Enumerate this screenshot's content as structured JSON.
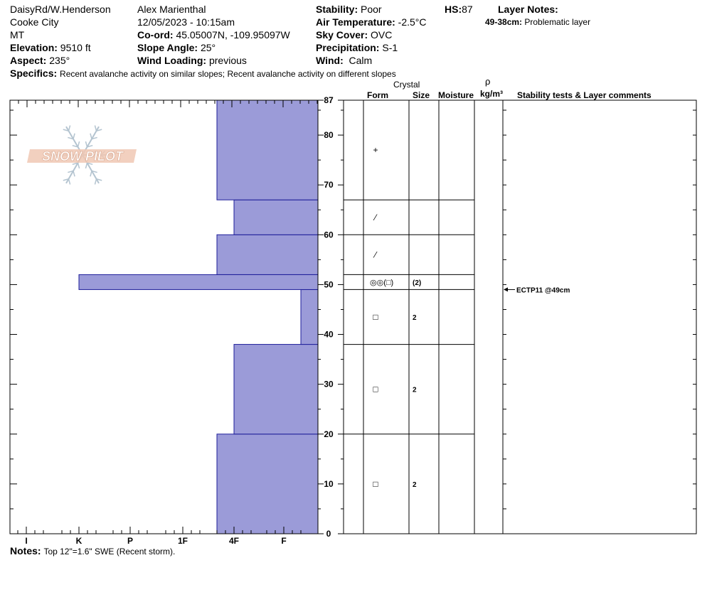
{
  "header": {
    "location": "DaisyRd/W.Henderson",
    "city": "Cooke City",
    "state": "MT",
    "elevation_label": "Elevation:",
    "elevation": "9510 ft",
    "aspect_label": "Aspect:",
    "aspect": "235°",
    "observer": "Alex Marienthal",
    "datetime": "12/05/2023 - 10:15am",
    "coord_label": "Co-ord:",
    "coord": "45.05007N, -109.95097W",
    "slope_label": "Slope Angle:",
    "slope": "25°",
    "wind_loading_label": "Wind Loading:",
    "wind_loading": "previous",
    "stability_label": "Stability:",
    "stability": "Poor",
    "air_temp_label": "Air Temperature:",
    "air_temp": "-2.5°C",
    "sky_label": "Sky Cover:",
    "sky": "OVC",
    "precip_label": "Precipitation:",
    "precip": "S-1",
    "wind_label": "Wind:",
    "wind": "Calm",
    "hs_label": "HS:",
    "hs": "87",
    "layer_notes_label": "Layer Notes:",
    "layer_note_range": "49-38cm:",
    "layer_note_text": "Problematic layer",
    "specifics_label": "Specifics:",
    "specifics": "Recent avalanche activity on similar slopes; Recent avalanche activity on different slopes"
  },
  "columns": {
    "crystal": "Crystal",
    "form": "Form",
    "size": "Size",
    "moisture": "Moisture",
    "rho": "ρ",
    "density_unit": "kg/m³",
    "comments": "Stability tests & Layer comments"
  },
  "logo": {
    "text": "SNOW PILOT"
  },
  "notes_label": "Notes:",
  "notes": "Top 12\"=1.6\" SWE (Recent storm).",
  "chart_data": {
    "type": "bar",
    "orientation": "horizontal",
    "title": "",
    "y_axis": {
      "ylim": [
        0,
        87
      ],
      "ticks": [
        0,
        10,
        20,
        30,
        40,
        50,
        60,
        70,
        80,
        87
      ]
    },
    "x_axis": {
      "categories": [
        "I",
        "K",
        "P",
        "1F",
        "4F",
        "F"
      ]
    },
    "hardness_layers": [
      {
        "bottom": 0,
        "top": 20,
        "hardness": "4F-"
      },
      {
        "bottom": 20,
        "top": 38,
        "hardness": "4F"
      },
      {
        "bottom": 38,
        "top": 49,
        "hardness": "F+"
      },
      {
        "bottom": 49,
        "top": 52,
        "hardness": "K"
      },
      {
        "bottom": 52,
        "top": 60,
        "hardness": "4F-"
      },
      {
        "bottom": 60,
        "top": 67,
        "hardness": "4F"
      },
      {
        "bottom": 67,
        "top": 87,
        "hardness": "4F-"
      }
    ],
    "layer_boundaries": [
      87,
      67,
      60,
      52,
      49,
      38,
      20
    ],
    "layer_details": [
      {
        "depth": 77,
        "form_symbol": "+",
        "size": ""
      },
      {
        "depth": 63.5,
        "form_symbol": "⁄",
        "size": ""
      },
      {
        "depth": 56,
        "form_symbol": "⁄",
        "size": ""
      },
      {
        "depth": 50.5,
        "form_symbol": "◎◎(□)",
        "size": "(2)"
      },
      {
        "depth": 43.5,
        "form_symbol": "□",
        "size": "2"
      },
      {
        "depth": 29,
        "form_symbol": "□",
        "size": "2"
      },
      {
        "depth": 10,
        "form_symbol": "□",
        "size": "2"
      }
    ],
    "stability_tests": [
      {
        "depth": 49,
        "label": "ECTP11 @49cm"
      }
    ]
  }
}
